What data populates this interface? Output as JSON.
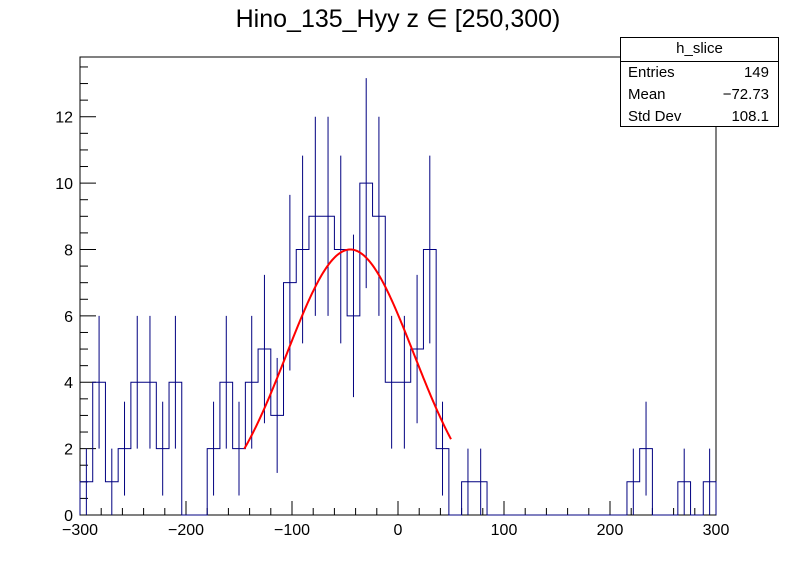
{
  "chart_data": {
    "type": "histogram",
    "title": "Hino_135_Hyy z  ∈ [250,300)",
    "xlim": [
      -300,
      300
    ],
    "ylim": [
      0,
      13.8
    ],
    "x_ticks": [
      -300,
      -200,
      -100,
      0,
      100,
      200,
      300
    ],
    "x_tick_labels": [
      "−300",
      "−200",
      "−100",
      "0",
      "100",
      "200",
      "300"
    ],
    "y_ticks": [
      0,
      2,
      4,
      6,
      8,
      10,
      12
    ],
    "y_tick_labels": [
      "0",
      "2",
      "4",
      "6",
      "8",
      "10",
      "12"
    ],
    "bin_width": 12,
    "bin_edges_start": -300,
    "bin_values": [
      1,
      4,
      1,
      2,
      4,
      4,
      2,
      4,
      0,
      0,
      2,
      4,
      2,
      4,
      5,
      3,
      7,
      8,
      9,
      9,
      8,
      6,
      10,
      9,
      4,
      4,
      5,
      8,
      2,
      0,
      1,
      1,
      0,
      0,
      0,
      0,
      0,
      0,
      0,
      0,
      0,
      0,
      0,
      1,
      2,
      0,
      0,
      1,
      0,
      1
    ],
    "errors": "sqrt(N)",
    "series": [
      {
        "type": "fit",
        "function": "gaussian",
        "color": "#ff0000",
        "x_range": [
          -145,
          50
        ],
        "amplitude": 8.0,
        "mean": -45,
        "sigma": 60
      }
    ],
    "histogram_color": "#000080",
    "stats_box": {
      "name": "h_slice",
      "rows": [
        {
          "label": "Entries",
          "value": "149"
        },
        {
          "label": "Mean",
          "value": "−72.73"
        },
        {
          "label": "Std Dev",
          "value": "108.1"
        }
      ]
    }
  }
}
